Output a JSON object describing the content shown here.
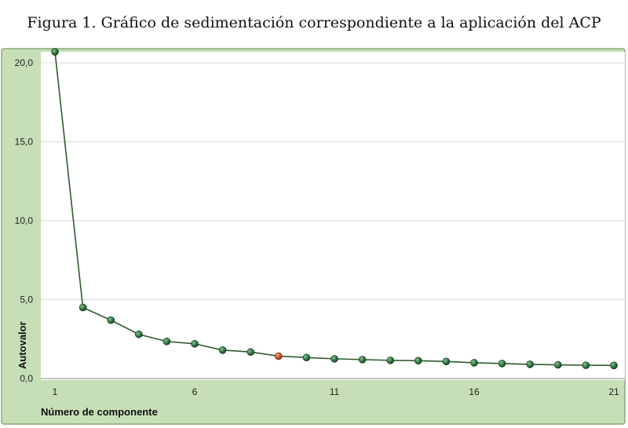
{
  "page_title": "Figura 1. Gráfico de sedimentación correspondiente a la aplicación del ACP",
  "colors": {
    "frame": "#c6dfb6",
    "frame_border": "#8aa87a",
    "plot_bg": "#ffffff",
    "grid": "#d9d9d9",
    "line": "#2f5a2f",
    "marker": "#1f6b2c",
    "marker_highlight": "#d04a22"
  },
  "chart_data": {
    "type": "line",
    "xlabel": "Número de componente",
    "ylabel": "Autovalor",
    "xlim": [
      1,
      21
    ],
    "ylim": [
      0,
      20
    ],
    "x_ticks": [
      "1",
      "6",
      "11",
      "16",
      "21"
    ],
    "y_ticks": [
      "0,0",
      "5,0",
      "10,0",
      "15,0",
      "20,0"
    ],
    "grid": true,
    "legend": "none",
    "highlighted_point_x": 9,
    "series": [
      {
        "x": [
          1,
          2,
          3,
          4,
          5,
          6,
          7,
          8,
          9,
          10,
          11,
          12,
          13,
          14,
          15,
          16,
          17,
          18,
          19,
          20,
          21
        ],
        "values": [
          20.7,
          4.5,
          3.7,
          2.8,
          2.35,
          2.2,
          1.8,
          1.68,
          1.42,
          1.33,
          1.25,
          1.2,
          1.15,
          1.13,
          1.08,
          1.0,
          0.95,
          0.9,
          0.87,
          0.84,
          0.83
        ]
      }
    ]
  }
}
